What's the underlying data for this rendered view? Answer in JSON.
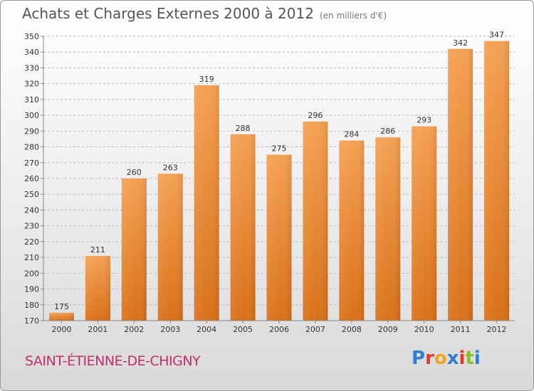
{
  "header": {
    "title": "Achats et Charges Externes 2000 à 2012",
    "subtitle": "(en milliers d'€)"
  },
  "footer": {
    "town": "SAINT-ÉTIENNE-DE-CHIGNY",
    "logo_letters": [
      "P",
      "r",
      "o",
      "x",
      "i",
      "t",
      "i"
    ],
    "logo_colors": [
      "#2f7fcf",
      "#e8362b",
      "#f2a51a",
      "#2f7fcf",
      "#e8362b",
      "#8bbf2b",
      "#2f7fcf"
    ]
  },
  "chart_data": {
    "type": "bar",
    "title": "Achats et Charges Externes 2000 à 2012",
    "subtitle": "(en milliers d'€)",
    "categories": [
      "2000",
      "2001",
      "2002",
      "2003",
      "2004",
      "2005",
      "2006",
      "2007",
      "2008",
      "2009",
      "2010",
      "2011",
      "2012"
    ],
    "values": [
      175,
      211,
      260,
      263,
      319,
      288,
      275,
      296,
      284,
      286,
      293,
      342,
      347
    ],
    "ylim": [
      170,
      350
    ],
    "yticks": [
      170,
      180,
      190,
      200,
      210,
      220,
      230,
      240,
      250,
      260,
      270,
      280,
      290,
      300,
      310,
      320,
      330,
      340,
      350
    ],
    "grid": true,
    "bar_color": "#f0923a"
  }
}
